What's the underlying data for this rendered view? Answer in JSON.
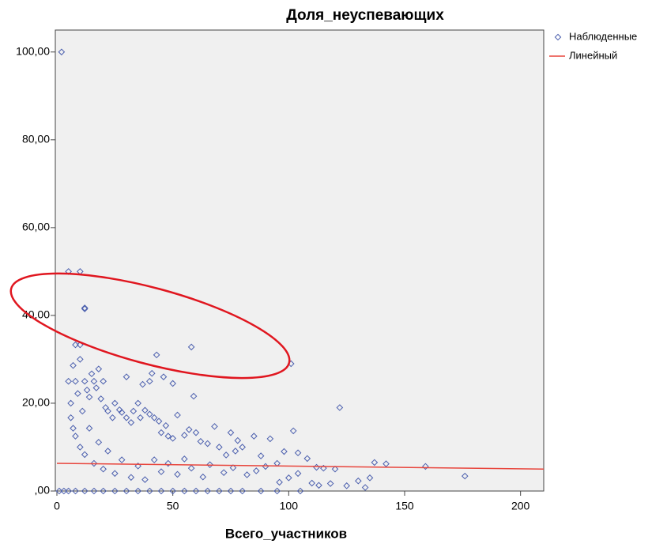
{
  "chart_data": {
    "type": "scatter",
    "title": "Доля_неуспевающих",
    "xlabel": "Всего_участников",
    "xlim": [
      0,
      210
    ],
    "ylim": [
      0,
      105
    ],
    "xticks": [
      0,
      50,
      100,
      150,
      200
    ],
    "yticks": [
      {
        "value": 0,
        "label": ",00"
      },
      {
        "value": 20,
        "label": "20,00"
      },
      {
        "value": 40,
        "label": "40,00"
      },
      {
        "value": 60,
        "label": "60,00"
      },
      {
        "value": 80,
        "label": "80,00"
      },
      {
        "value": 100,
        "label": "100,00"
      }
    ],
    "legend": "top-right",
    "series": [
      {
        "name": "Наблюденные",
        "color": "#4b5fae",
        "marker": "diamond",
        "x": [
          2,
          5,
          10,
          12,
          12,
          8,
          10,
          43,
          58,
          101,
          41,
          46,
          50,
          59,
          122,
          102,
          40,
          37,
          30,
          20,
          18,
          15,
          12,
          10,
          8,
          5,
          6,
          7,
          9,
          11,
          13,
          14,
          16,
          17,
          19,
          21,
          22,
          24,
          25,
          27,
          28,
          30,
          32,
          33,
          35,
          36,
          38,
          40,
          42,
          44,
          45,
          47,
          48,
          50,
          52,
          55,
          57,
          60,
          62,
          65,
          68,
          70,
          73,
          75,
          77,
          78,
          80,
          85,
          88,
          92,
          95,
          98,
          104,
          108,
          112,
          115,
          120,
          130,
          135,
          137,
          142,
          159,
          176,
          110,
          113,
          118,
          125,
          133,
          104,
          100,
          96,
          90,
          86,
          82,
          76,
          72,
          66,
          63,
          58,
          55,
          52,
          48,
          45,
          42,
          38,
          35,
          32,
          28,
          25,
          22,
          20,
          18,
          16,
          14,
          12,
          10,
          8,
          7,
          6,
          1,
          3,
          5,
          8,
          12,
          16,
          20,
          25,
          30,
          35,
          40,
          45,
          50,
          55,
          60,
          65,
          70,
          75,
          80,
          88,
          95,
          105
        ],
        "values": [
          100,
          50,
          50,
          41.7,
          41.5,
          33.3,
          33.3,
          31,
          32.8,
          29,
          26.8,
          26,
          24.5,
          21.6,
          19,
          13.7,
          25,
          24.3,
          26,
          25,
          27.8,
          26.7,
          25,
          30,
          25,
          25,
          20,
          28.6,
          22.2,
          18.2,
          23,
          21.4,
          25,
          23.5,
          21,
          19,
          18.2,
          16.7,
          20,
          18.5,
          17.9,
          16.7,
          15.6,
          18.2,
          20,
          16.7,
          18.4,
          17.5,
          16.7,
          15.9,
          13.3,
          14.9,
          12.5,
          12,
          17.3,
          12.7,
          14,
          13.3,
          11.3,
          10.8,
          14.7,
          10,
          8.2,
          13.3,
          9.1,
          11.5,
          10,
          12.5,
          8,
          11.9,
          6.3,
          9,
          8.7,
          7.4,
          5.4,
          5.2,
          5,
          2.3,
          3,
          6.5,
          6.2,
          5.6,
          3.4,
          1.8,
          1.3,
          1.7,
          1.2,
          0.8,
          4,
          3,
          2,
          5.6,
          4.6,
          3.7,
          5.3,
          4.2,
          6,
          3.2,
          5.2,
          7.3,
          3.8,
          6.3,
          4.4,
          7.1,
          2.6,
          5.7,
          3.1,
          7.1,
          4,
          9.1,
          5,
          11.1,
          6.3,
          14.3,
          8.3,
          10,
          12.5,
          14.3,
          16.7,
          0,
          0,
          0,
          0,
          0,
          0,
          0,
          0,
          0,
          0,
          0,
          0,
          0,
          0,
          0,
          0,
          0,
          0,
          0,
          0,
          0,
          0
        ]
      },
      {
        "name": "Линейный",
        "color": "#e8453c",
        "marker": "line",
        "x": [
          0,
          210
        ],
        "values": [
          6.3,
          5.0
        ]
      }
    ]
  }
}
